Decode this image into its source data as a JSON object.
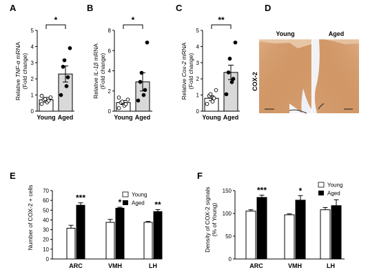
{
  "colors": {
    "white_bar": "#ffffff",
    "aged_bar_light": "#d9d9d9",
    "black_bar": "#000000",
    "tissue": "#c98a5a"
  },
  "panels": {
    "A": {
      "label": "A",
      "ylabel_line1_pre": "Relative ",
      "ylabel_line1_gene": "TNF-α",
      "ylabel_line1_post": " mRNA",
      "ylabel_line2": "(Fold change)",
      "sig": "*"
    },
    "B": {
      "label": "B",
      "ylabel_line1_pre": "Relative ",
      "ylabel_line1_gene": "IL-1β",
      "ylabel_line1_post": " mRNA",
      "ylabel_line2": "(Fold change)",
      "sig": "*"
    },
    "C": {
      "label": "C",
      "ylabel_line1_pre": "Relative ",
      "ylabel_line1_gene": "Cox-2",
      "ylabel_line1_post": " mRNA",
      "ylabel_line2": "(Fold change)",
      "sig": "**"
    },
    "D": {
      "label": "D",
      "young": "Young",
      "aged": "Aged",
      "side": "COX-2"
    },
    "E": {
      "label": "E",
      "ylabel": "Number of COX-2 + cells",
      "legend": [
        "Young",
        "Aged"
      ]
    },
    "F": {
      "label": "F",
      "ylabel_line1": "Density of COX-2 signals",
      "ylabel_line2": "(% of Young)",
      "legend": [
        "Young",
        "Aged"
      ]
    }
  },
  "chart_data": [
    {
      "type": "bar",
      "panel": "A",
      "categories": [
        "Young",
        "Aged"
      ],
      "values": [
        0.7,
        2.3
      ],
      "errors": [
        0.15,
        0.5
      ],
      "ylim": [
        0,
        5
      ],
      "yticks": [
        0,
        1,
        2,
        3,
        4,
        5
      ],
      "points": [
        [
          0.45,
          0.55,
          0.65,
          0.7,
          0.75,
          0.85,
          0.95
        ],
        [
          1.0,
          1.55,
          2.1,
          2.75,
          3.15,
          3.9
        ]
      ],
      "significance": "*"
    },
    {
      "type": "bar",
      "panel": "B",
      "categories": [
        "Young",
        "Aged"
      ],
      "values": [
        0.85,
        2.9
      ],
      "errors": [
        0.2,
        0.9
      ],
      "ylim": [
        0,
        8
      ],
      "yticks": [
        0,
        2,
        4,
        6,
        8
      ],
      "points": [
        [
          0.3,
          0.55,
          0.7,
          0.85,
          0.95,
          1.15,
          1.35
        ],
        [
          1.05,
          1.6,
          2.1,
          2.9,
          3.8,
          6.8
        ]
      ],
      "significance": "*"
    },
    {
      "type": "bar",
      "panel": "C",
      "categories": [
        "Young",
        "Aged"
      ],
      "values": [
        0.8,
        2.4
      ],
      "errors": [
        0.15,
        0.45
      ],
      "ylim": [
        0,
        5
      ],
      "yticks": [
        0,
        1,
        2,
        3,
        4,
        5
      ],
      "points": [
        [
          0.45,
          0.6,
          0.8,
          0.95,
          1.05,
          1.3
        ],
        [
          1.05,
          1.8,
          2.0,
          2.4,
          3.25,
          4.25
        ]
      ],
      "significance": "**"
    },
    {
      "type": "bar",
      "panel": "E",
      "categories": [
        "ARC",
        "VMH",
        "LH"
      ],
      "ylim": [
        0,
        70
      ],
      "yticks": [
        0,
        10,
        20,
        30,
        40,
        50,
        60,
        70
      ],
      "series": [
        {
          "name": "Young",
          "values": [
            31.5,
            37.5,
            37.5
          ],
          "errors": [
            3,
            3,
            1
          ]
        },
        {
          "name": "Aged",
          "values": [
            55,
            52,
            48.5
          ],
          "errors": [
            2.5,
            1,
            2
          ]
        }
      ],
      "significance": [
        "***",
        "*",
        "**"
      ]
    },
    {
      "type": "bar",
      "panel": "F",
      "categories": [
        "ARC",
        "VMH",
        "LH"
      ],
      "ylim": [
        0,
        150
      ],
      "yticks": [
        0,
        50,
        100,
        150
      ],
      "series": [
        {
          "name": "Young",
          "values": [
            105,
            97,
            108
          ],
          "errors": [
            3,
            2,
            5
          ]
        },
        {
          "name": "Aged",
          "values": [
            135,
            129,
            117
          ],
          "errors": [
            5,
            10,
            13
          ]
        }
      ],
      "significance": [
        "***",
        "*",
        ""
      ]
    }
  ]
}
